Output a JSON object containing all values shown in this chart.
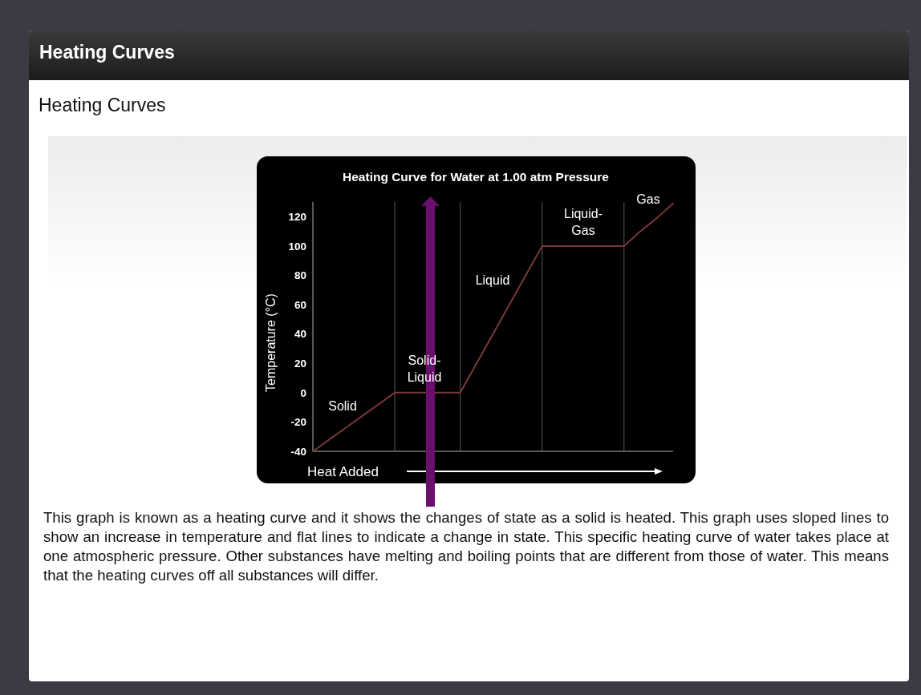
{
  "chart_data": {
    "type": "line",
    "title": "Heating Curve for Water at 1.00 atm Pressure",
    "xlabel": "Heat Added",
    "ylabel": "Temperature (°C)",
    "categories": [
      null,
      null,
      null,
      null,
      null,
      null,
      null,
      null,
      null,
      null,
      null,
      null,
      null,
      null,
      null,
      null,
      null,
      null,
      null,
      null,
      null,
      null,
      null
    ],
    "series": [
      {
        "color": "#7a3838",
        "values": [
          -40,
          -32,
          -24,
          -16,
          -8,
          0,
          0,
          0,
          0,
          0,
          20,
          40,
          60,
          80,
          100,
          100,
          100,
          100,
          100,
          100,
          110,
          119,
          129
        ]
      }
    ],
    "grid": "x",
    "ylim": [
      -40,
      130
    ],
    "yticks": [
      -40,
      -20,
      0,
      20,
      40,
      60,
      80,
      100,
      120
    ],
    "annotations": [
      "Heating Curves",
      "Heating Curves",
      "This graph is known as a heating curve and it shows the changes of state as a solid is heated. This graph uses sloped lines to show an increase in temperature and flat lines to indicate a change in state. This specific heating curve of water takes place at one atmospheric pressure. Other substances have melting and boiling points that are different from those of water. This means that the heating curves off all substances will differ.",
      "Solid",
      "Solid-Liquid",
      "Liquid",
      "Liquid-Gas",
      "Gas"
    ]
  }
}
